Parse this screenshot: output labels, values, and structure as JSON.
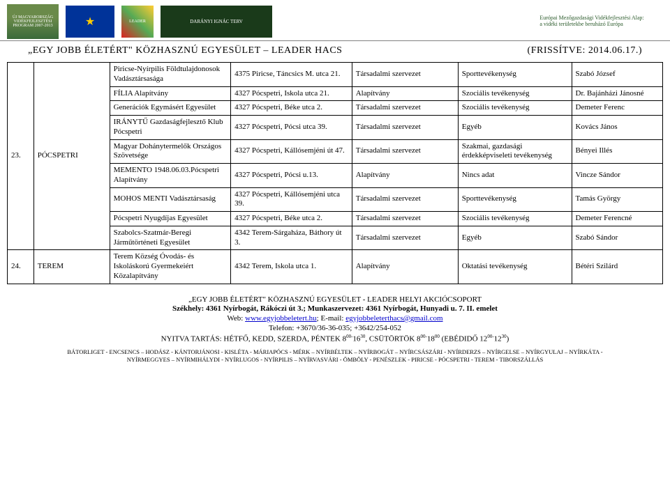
{
  "header": {
    "um_text": "ÚJ MAGYARORSZÁG VIDÉKFEJLESZTÉSI PROGRAM 2007-2013",
    "eu_stars": "★",
    "leader_text": "LEADER",
    "daranyi_text": "DARÁNYI IGNÁC TERV",
    "emva_line1": "Európai Mezőgazdasági Vidékfejlesztési Alap:",
    "emva_line2": "a vidéki területekbe beruházó Európa"
  },
  "title": {
    "main": "„EGY JOBB ÉLETÉRT\" KÖZHASZNÚ EGYESÜLET – LEADER HACS",
    "updated": "(FRISSÍTVE: 2014.06.17.)"
  },
  "rows": [
    {
      "num": "23.",
      "loc": "PÓCSPETRI",
      "rowspan": 9,
      "cells": [
        "Piricse-Nyírpilis Földtulajdonosok Vadásztársasága",
        "4375 Piricse, Táncsics M. utca 21.",
        "Társadalmi szervezet",
        "Sporttevékenység",
        "Szabó József"
      ]
    },
    {
      "cells": [
        "FÍLIA Alapítvány",
        "4327 Pócspetri, Iskola utca 21.",
        "Alapítvány",
        "Szociális tevékenység",
        "Dr. Bajánházi  Jánosné"
      ]
    },
    {
      "cells": [
        "Generációk Egymásért Egyesület",
        "4327 Pócspetri, Béke utca 2.",
        "Társadalmi szervezet",
        "Szociális tevékenység",
        "Demeter Ferenc"
      ]
    },
    {
      "cells": [
        "IRÁNYTŰ Gazdaságfejlesztő Klub Pócspetri",
        "4327 Pócspetri, Pócsi utca 39.",
        "Társadalmi szervezet",
        "Egyéb",
        "Kovács János"
      ]
    },
    {
      "cells": [
        "Magyar Dohánytermelők Országos Szövetsége",
        "4327 Pócspetri, Kállósemjéni út 47.",
        "Társadalmi szervezet",
        "Szakmai, gazdasági érdekképviseleti tevékenység",
        "Bényei Illés"
      ]
    },
    {
      "cells": [
        "MEMENTO 1948.06.03.Pócspetri Alapítvány",
        "4327 Pócspetri, Pócsi u.13.",
        "Alapítvány",
        "Nincs adat",
        "Vincze Sándor"
      ]
    },
    {
      "cells": [
        "MOHOS MENTI Vadásztársaság",
        "4327 Pócspetri, Kállósemjéni utca 39.",
        "Társadalmi szervezet",
        "Sporttevékenység",
        "Tamás György"
      ]
    },
    {
      "cells": [
        "Pócspetri Nyugdíjas Egyesület",
        "4327 Pócspetri, Béke utca 2.",
        "Társadalmi szervezet",
        "Szociális tevékenység",
        "Demeter Ferencné"
      ]
    },
    {
      "cells": [
        "Szabolcs-Szatmár-Beregi Járműtörténeti Egyesület",
        "4342 Terem-Sárgaháza, Báthory út 3.",
        "Társadalmi szervezet",
        "Egyéb",
        "Szabó Sándor"
      ]
    },
    {
      "num": "24.",
      "loc": "TEREM",
      "rowspan": 1,
      "cells": [
        "Terem Község Óvodás- és Iskoláskorú Gyermekeiért Közalapítvány",
        "4342 Terem, Iskola utca 1.",
        "Alapítvány",
        "Oktatási tevékenység",
        "Bétéri Szilárd"
      ]
    }
  ],
  "footer": {
    "line1": "„EGY JOBB ÉLETÉRT\" KÖZHASZNÚ EGYESÜLET - LEADER HELYI AKCIÓCSOPORT",
    "line2_a": "Székhely: 4361 Nyírbogát, Rákóczi út 3.; Munkaszervezet: 4361 Nyírbogát, Hunyadi u. 7. II. emelet",
    "line3_pre": "Web: ",
    "line3_link1": "www.egyjobbeletert.hu",
    "line3_mid": "; E-mail: ",
    "line3_link2": "egyjobbeleterthacs@gmail.com",
    "line4": "Telefon: +3670/36-36-035; +3642/254-052",
    "line5_pre": "NYITVA TARTÁS: HÉTFŐ, KEDD, SZERDA, PÉNTEK 8",
    "line5_sup1": "00-",
    "line5_mid1": "16",
    "line5_sup2": "30",
    "line5_mid2": ", CSÜTÖRTÖK 8",
    "line5_sup3": "00-",
    "line5_mid3": "18",
    "line5_sup4": "00",
    "line5_mid4": " (EBÉDIDŐ 12",
    "line5_sup5": "00-",
    "line5_mid5": "12",
    "line5_sup6": "30",
    "line5_end": ")"
  },
  "small": {
    "line1": "BÁTORLIGET - ENCSENCS – HODÁSZ - KÁNTORJÁNOSI - KISLÉTA - MÁRIAPÓCS - MÉRK – NYÍRBÉLTEK – NYÍRBOGÁT – NYÍRCSÁSZÁRI - NYÍRDERZS – NYÍRGELSE – NYÍRGYULAJ – NYÍRKÁTA -",
    "line2": "NYÍRMEGGYES – NYÍRMIHÁLYDI - NYÍRLUGOS - NYÍRPILIS – NYÍRVASVÁRI - ÖMBÖLY - PENÉSZLEK - PIRICSE - PÓCSPETRI - TEREM - TIBORSZÁLLÁS"
  }
}
